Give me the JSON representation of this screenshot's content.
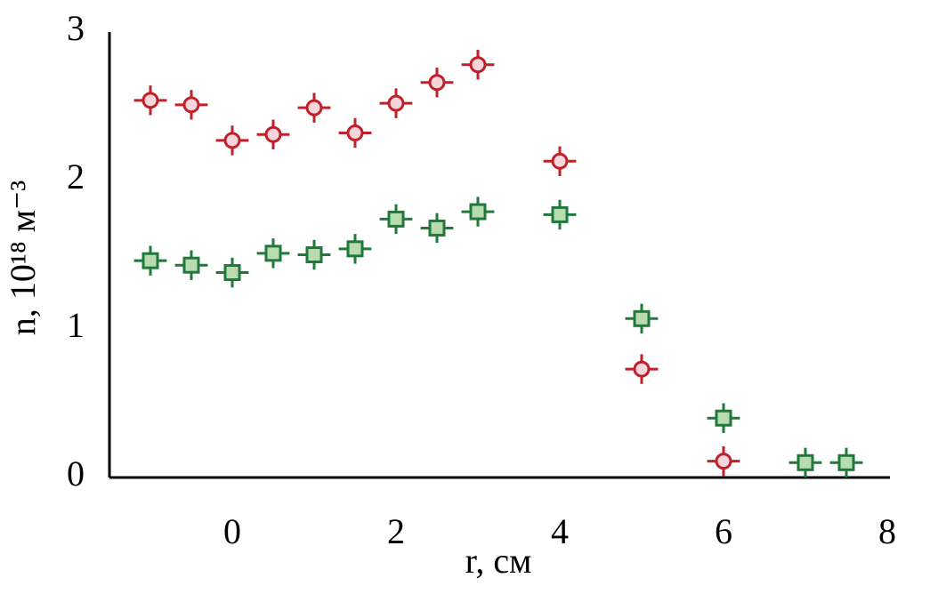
{
  "chart_data": {
    "type": "scatter",
    "xlabel": "r, см",
    "ylabel": "n, 10¹⁸ м⁻³",
    "xlim": [
      -1.5,
      8
    ],
    "ylim": [
      0,
      3
    ],
    "xticks": [
      0,
      2,
      4,
      6,
      8
    ],
    "yticks": [
      0,
      1,
      2,
      3
    ],
    "grid": false,
    "series": [
      {
        "color": "#c0202a",
        "fill": "#f6d6da",
        "marker": "circle",
        "x": [
          -1,
          -0.5,
          0,
          0.5,
          1,
          1.5,
          2,
          2.5,
          3,
          4,
          5,
          6
        ],
        "values": [
          2.54,
          2.51,
          2.27,
          2.31,
          2.49,
          2.32,
          2.52,
          2.66,
          2.78,
          2.13,
          0.73,
          0.11
        ],
        "xerr": 0.2,
        "yerr": 0.1
      },
      {
        "color": "#1e7a3a",
        "fill": "#b9dbb0",
        "marker": "square",
        "x": [
          -1,
          -0.5,
          0,
          0.5,
          1,
          1.5,
          2,
          2.5,
          3,
          4,
          5,
          6,
          7,
          7.5
        ],
        "values": [
          1.46,
          1.43,
          1.38,
          1.51,
          1.5,
          1.54,
          1.74,
          1.68,
          1.79,
          1.77,
          1.07,
          0.4,
          0.1,
          0.1
        ],
        "xerr": 0.2,
        "yerr": 0.1
      }
    ]
  }
}
